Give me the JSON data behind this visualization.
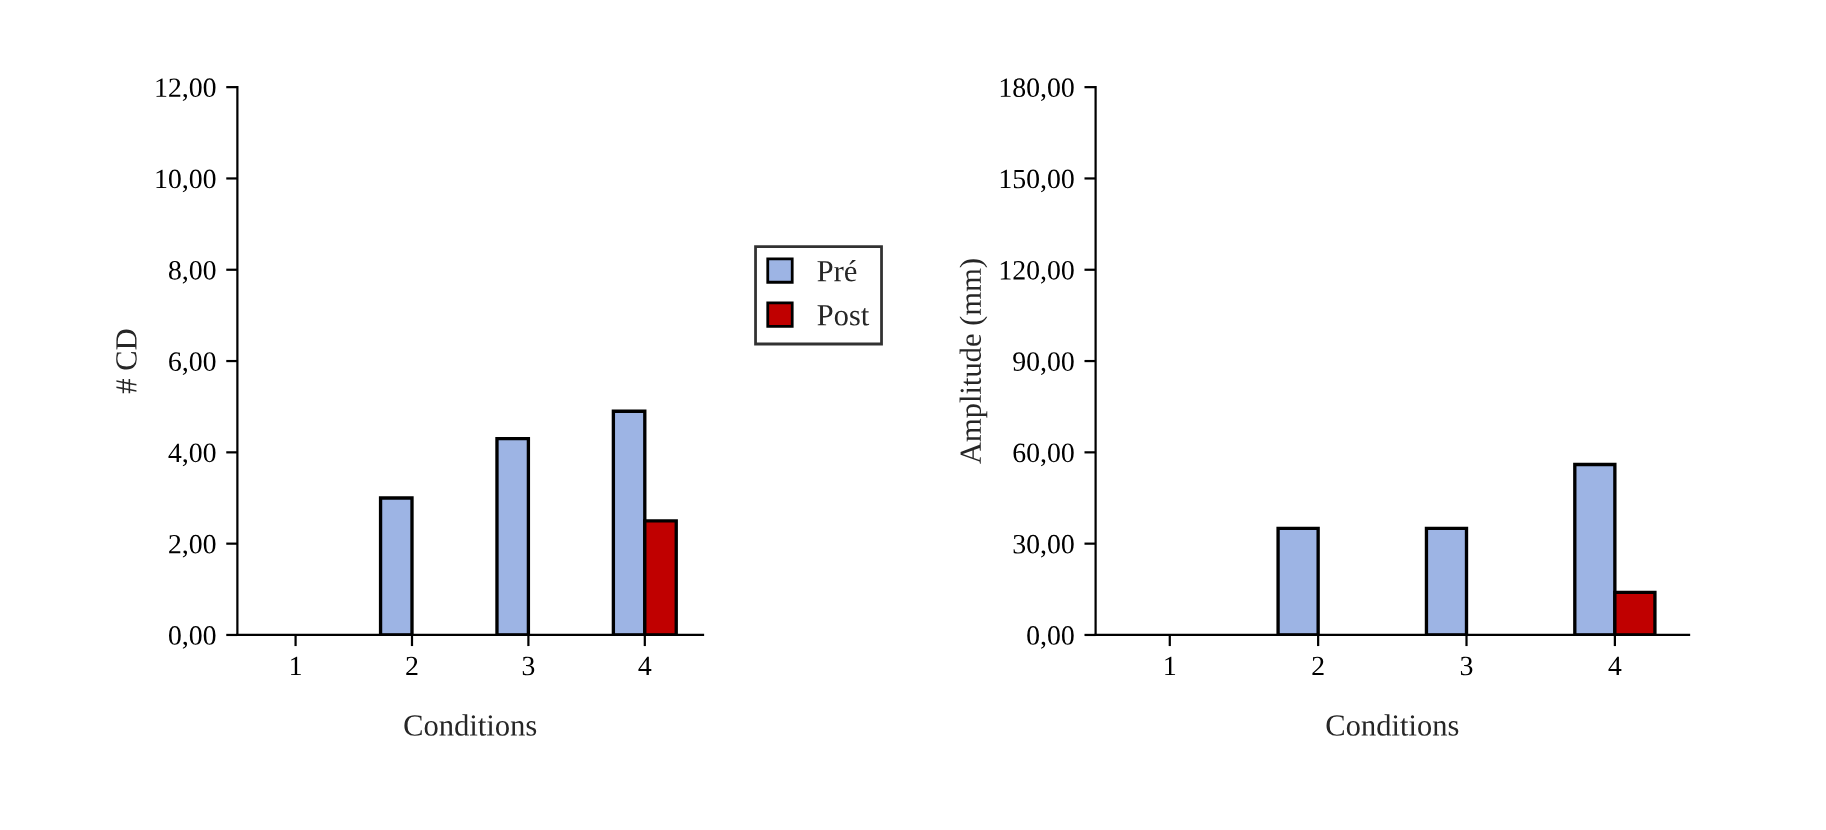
{
  "chart_data": [
    {
      "type": "bar",
      "xlabel": "Conditions",
      "ylabel": "# CD",
      "categories": [
        "1",
        "2",
        "3",
        "4"
      ],
      "series": [
        {
          "name": "Pré",
          "color": "#9db4e4",
          "values": [
            null,
            3.0,
            4.3,
            4.9
          ]
        },
        {
          "name": "Post",
          "color": "#c00000",
          "values": [
            null,
            null,
            null,
            2.5
          ]
        }
      ],
      "ylim": [
        0,
        12
      ],
      "yticks": [
        {
          "value": 0,
          "label": "0,00"
        },
        {
          "value": 2,
          "label": "2,00"
        },
        {
          "value": 4,
          "label": "4,00"
        },
        {
          "value": 6,
          "label": "6,00"
        },
        {
          "value": 8,
          "label": "8,00"
        },
        {
          "value": 10,
          "label": "10,00"
        },
        {
          "value": 12,
          "label": "12,00"
        }
      ],
      "legend": "right",
      "grid": false
    },
    {
      "type": "bar",
      "xlabel": "Conditions",
      "ylabel": "Amplitude (mm)",
      "categories": [
        "1",
        "2",
        "3",
        "4"
      ],
      "series": [
        {
          "color": "#9db4e4",
          "values": [
            null,
            35,
            35,
            56
          ]
        },
        {
          "color": "#c00000",
          "values": [
            null,
            null,
            null,
            14
          ]
        }
      ],
      "ylim": [
        0,
        180
      ],
      "yticks": [
        {
          "value": 0,
          "label": "0,00"
        },
        {
          "value": 30,
          "label": "30,00"
        },
        {
          "value": 60,
          "label": "60,00"
        },
        {
          "value": 90,
          "label": "90,00"
        },
        {
          "value": 120,
          "label": "120,00"
        },
        {
          "value": 150,
          "label": "150,00"
        },
        {
          "value": 180,
          "label": "180,00"
        }
      ],
      "grid": false
    }
  ]
}
